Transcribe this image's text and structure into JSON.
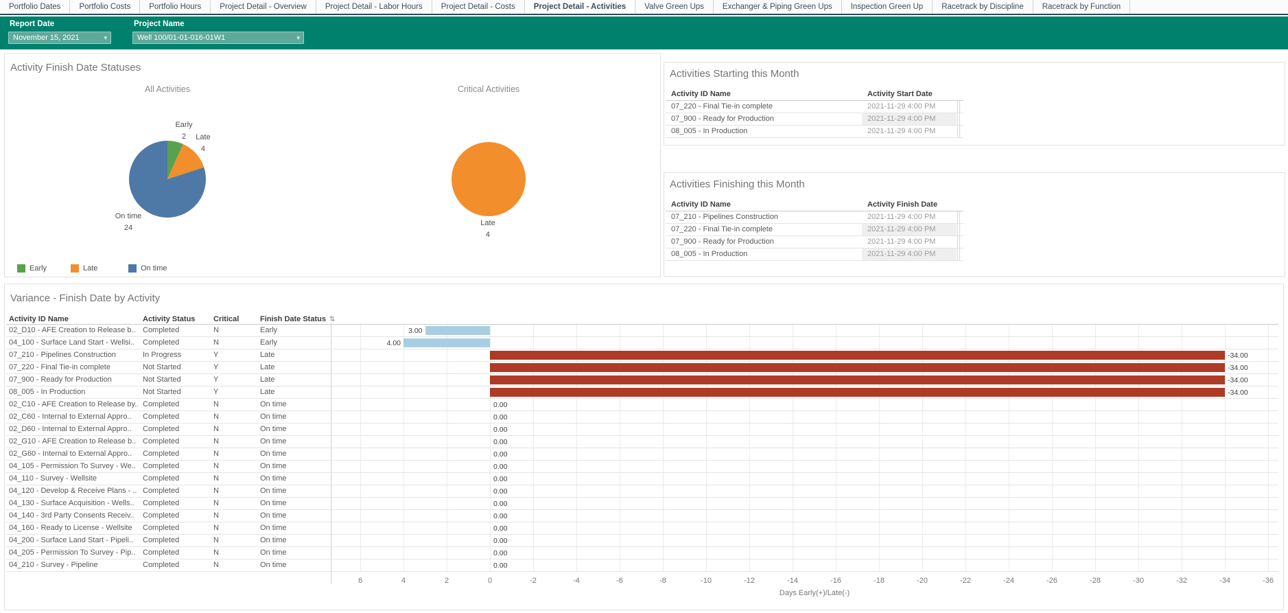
{
  "tabs": {
    "items": [
      {
        "label": "Portfolio Dates",
        "active": false
      },
      {
        "label": "Portfolio Costs",
        "active": false
      },
      {
        "label": "Portfolio Hours",
        "active": false
      },
      {
        "label": "Project Detail - Overview",
        "active": false
      },
      {
        "label": "Project Detail - Labor Hours",
        "active": false
      },
      {
        "label": "Project Detail - Costs",
        "active": false
      },
      {
        "label": "Project Detail - Activities",
        "active": true
      },
      {
        "label": "Valve Green Ups",
        "active": false
      },
      {
        "label": "Exchanger & Piping Green Ups",
        "active": false
      },
      {
        "label": "Inspection Green Up",
        "active": false
      },
      {
        "label": "Racetrack by Discipline",
        "active": false
      },
      {
        "label": "Racetrack by Function",
        "active": false
      }
    ]
  },
  "filters": {
    "report_date": {
      "label": "Report Date",
      "value": "November 15, 2021"
    },
    "project_name": {
      "label": "Project Name",
      "value": "Well 100/01-01-016-01W1"
    }
  },
  "colors": {
    "teal_bar": "#00816d",
    "early_green": "#59A14F",
    "late_orange": "#F28E2B",
    "ontime_blue": "#4E79A7",
    "bar_positive_blue": "#A9CEE3",
    "bar_negative_red": "#AE3B26"
  },
  "status_panel": {
    "title": "Activity Finish Date Statuses",
    "legend": [
      {
        "label": "Early",
        "color": "#59A14F"
      },
      {
        "label": "Late",
        "color": "#F28E2B"
      },
      {
        "label": "On time",
        "color": "#4E79A7"
      }
    ],
    "pies": [
      {
        "title": "All Activities",
        "slices": [
          {
            "label": "Early",
            "value": 2,
            "color": "#59A14F"
          },
          {
            "label": "Late",
            "value": 4,
            "color": "#F28E2B"
          },
          {
            "label": "On time",
            "value": 24,
            "color": "#4E79A7"
          }
        ]
      },
      {
        "title": "Critical Activities",
        "slices": [
          {
            "label": "Late",
            "value": 4,
            "color": "#F28E2B"
          }
        ]
      }
    ]
  },
  "starting_panel": {
    "title": "Activities Starting this Month",
    "columns": [
      "Activity ID Name",
      "Activity Start Date"
    ],
    "rows": [
      [
        "07_220 - Final Tie-in complete",
        "2021-11-29 4:00 PM"
      ],
      [
        "07_900 - Ready for Production",
        "2021-11-29 4:00 PM"
      ],
      [
        "08_005 - In Production",
        "2021-11-29 4:00 PM"
      ]
    ]
  },
  "finishing_panel": {
    "title": "Activities Finishing this Month",
    "columns": [
      "Activity ID Name",
      "Activity Finish Date"
    ],
    "rows": [
      [
        "07_210 - Pipelines Construction",
        "2021-11-29 4:00 PM"
      ],
      [
        "07_220 - Final Tie-in complete",
        "2021-11-29 4:00 PM"
      ],
      [
        "07_900 - Ready for Production",
        "2021-11-29 4:00 PM"
      ],
      [
        "08_005 - In Production",
        "2021-11-29 4:00 PM"
      ]
    ]
  },
  "variance_panel": {
    "title": "Variance - Finish Date by Activity",
    "columns": [
      "Activity ID Name",
      "Activity Status",
      "Critical",
      "Finish Date Status"
    ],
    "axis": {
      "title": "Days Early(+)/Late(-)",
      "ticks": [
        6,
        4,
        2,
        0,
        -2,
        -4,
        -6,
        -8,
        -10,
        -12,
        -14,
        -16,
        -18,
        -20,
        -22,
        -24,
        -26,
        -28,
        -30,
        -32,
        -34,
        -36
      ]
    },
    "rows": [
      {
        "name": "02_D10 - AFE Creation to Release b..",
        "status": "Completed",
        "critical": "N",
        "finish": "Early",
        "value": 3,
        "bar_color": "#A9CEE3"
      },
      {
        "name": "04_100 - Surface Land Start - Wellsi..",
        "status": "Completed",
        "critical": "N",
        "finish": "Early",
        "value": 4,
        "bar_color": "#A9CEE3"
      },
      {
        "name": "07_210 - Pipelines Construction",
        "status": "In Progress",
        "critical": "Y",
        "finish": "Late",
        "value": -34,
        "bar_color": "#AE3B26"
      },
      {
        "name": "07_220 - Final Tie-in complete",
        "status": "Not Started",
        "critical": "Y",
        "finish": "Late",
        "value": -34,
        "bar_color": "#AE3B26"
      },
      {
        "name": "07_900 - Ready for Production",
        "status": "Not Started",
        "critical": "Y",
        "finish": "Late",
        "value": -34,
        "bar_color": "#AE3B26"
      },
      {
        "name": "08_005 - In Production",
        "status": "Not Started",
        "critical": "Y",
        "finish": "Late",
        "value": -34,
        "bar_color": "#AE3B26"
      },
      {
        "name": "02_C10 - AFE Creation to Release by..",
        "status": "Completed",
        "critical": "N",
        "finish": "On time",
        "value": 0,
        "bar_color": ""
      },
      {
        "name": "02_C60 - Internal to External Appro..",
        "status": "Completed",
        "critical": "N",
        "finish": "On time",
        "value": 0,
        "bar_color": ""
      },
      {
        "name": "02_D60 - Internal to External Appro..",
        "status": "Completed",
        "critical": "N",
        "finish": "On time",
        "value": 0,
        "bar_color": ""
      },
      {
        "name": "02_G10 - AFE Creation to Release b..",
        "status": "Completed",
        "critical": "N",
        "finish": "On time",
        "value": 0,
        "bar_color": ""
      },
      {
        "name": "02_G60 - Internal to External Appro..",
        "status": "Completed",
        "critical": "N",
        "finish": "On time",
        "value": 0,
        "bar_color": ""
      },
      {
        "name": "04_105 - Permission To Survey - We..",
        "status": "Completed",
        "critical": "N",
        "finish": "On time",
        "value": 0,
        "bar_color": ""
      },
      {
        "name": "04_110 - Survey - Wellsite",
        "status": "Completed",
        "critical": "N",
        "finish": "On time",
        "value": 0,
        "bar_color": ""
      },
      {
        "name": "04_120 - Develop & Receive Plans - ..",
        "status": "Completed",
        "critical": "N",
        "finish": "On time",
        "value": 0,
        "bar_color": ""
      },
      {
        "name": "04_130 - Surface Acquisition - Wells..",
        "status": "Completed",
        "critical": "N",
        "finish": "On time",
        "value": 0,
        "bar_color": ""
      },
      {
        "name": "04_140 - 3rd Party Consents Receiv..",
        "status": "Completed",
        "critical": "N",
        "finish": "On time",
        "value": 0,
        "bar_color": ""
      },
      {
        "name": "04_160 - Ready to License - Wellsite",
        "status": "Completed",
        "critical": "N",
        "finish": "On time",
        "value": 0,
        "bar_color": ""
      },
      {
        "name": "04_200 - Surface Land Start - Pipeli..",
        "status": "Completed",
        "critical": "N",
        "finish": "On time",
        "value": 0,
        "bar_color": ""
      },
      {
        "name": "04_205 - Permission To Survey - Pip..",
        "status": "Completed",
        "critical": "N",
        "finish": "On time",
        "value": 0,
        "bar_color": ""
      },
      {
        "name": "04_210 - Survey - Pipeline",
        "status": "Completed",
        "critical": "N",
        "finish": "On time",
        "value": 0,
        "bar_color": ""
      }
    ]
  },
  "chart_data": [
    {
      "type": "pie",
      "title": "All Activities",
      "labels": [
        "Early",
        "Late",
        "On time"
      ],
      "values": [
        2,
        4,
        24
      ],
      "colors": [
        "#59A14F",
        "#F28E2B",
        "#4E79A7"
      ]
    },
    {
      "type": "pie",
      "title": "Critical Activities",
      "labels": [
        "Late"
      ],
      "values": [
        4
      ],
      "colors": [
        "#F28E2B"
      ]
    },
    {
      "type": "bar",
      "orientation": "horizontal",
      "title": "Variance - Finish Date by Activity",
      "xlabel": "Days Early(+)/Late(-)",
      "xlim": [
        7.4,
        -36.6
      ],
      "categories": [
        "02_D10 - AFE Creation to Release b..",
        "04_100 - Surface Land Start - Wellsi..",
        "07_210 - Pipelines Construction",
        "07_220 - Final Tie-in complete",
        "07_900 - Ready for Production",
        "08_005 - In Production",
        "02_C10 - AFE Creation to Release by..",
        "02_C60 - Internal to External Appro..",
        "02_D60 - Internal to External Appro..",
        "02_G10 - AFE Creation to Release b..",
        "02_G60 - Internal to External Appro..",
        "04_105 - Permission To Survey - We..",
        "04_110 - Survey - Wellsite",
        "04_120 - Develop & Receive Plans - ..",
        "04_130 - Surface Acquisition - Wells..",
        "04_140 - 3rd Party Consents Receiv..",
        "04_160 - Ready to License - Wellsite",
        "04_200 - Surface Land Start - Pipeli..",
        "04_205 - Permission To Survey - Pip..",
        "04_210 - Survey - Pipeline"
      ],
      "values": [
        3,
        4,
        -34,
        -34,
        -34,
        -34,
        0,
        0,
        0,
        0,
        0,
        0,
        0,
        0,
        0,
        0,
        0,
        0,
        0,
        0
      ]
    }
  ]
}
